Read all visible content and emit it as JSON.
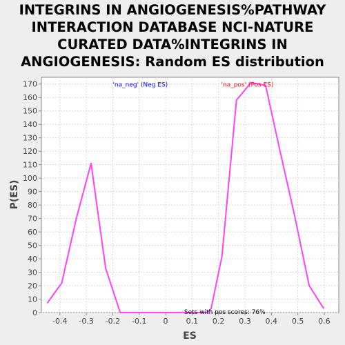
{
  "chart_data": {
    "type": "line",
    "title": "INTEGRINS IN ANGIOGENESIS%PATHWAY INTERACTION DATABASE NCI-NATURE CURATED DATA%INTEGRINS IN ANGIOGENESIS: Random ES distribution",
    "xlabel": "ES",
    "ylabel": "P(ES)",
    "xlim": [
      -0.47,
      0.655
    ],
    "ylim": [
      0,
      175
    ],
    "x_ticks": [
      -0.4,
      -0.3,
      -0.2,
      -0.1,
      0.0,
      0.1,
      0.2,
      0.3,
      0.4,
      0.5,
      0.6
    ],
    "y_ticks": [
      0,
      10,
      20,
      30,
      40,
      50,
      60,
      70,
      80,
      90,
      100,
      110,
      120,
      130,
      140,
      150,
      160,
      170
    ],
    "grid": true,
    "series": [
      {
        "color": "#ff40ff",
        "points": [
          [
            -0.448,
            7
          ],
          [
            -0.393,
            22
          ],
          [
            -0.338,
            70
          ],
          [
            -0.282,
            111
          ],
          [
            -0.227,
            33
          ],
          [
            -0.172,
            0
          ],
          [
            0.048,
            0
          ],
          [
            0.103,
            0
          ],
          [
            0.158,
            0
          ],
          [
            0.172,
            3
          ],
          [
            0.213,
            42
          ],
          [
            0.268,
            158
          ],
          [
            0.323,
            171
          ],
          [
            0.378,
            169
          ],
          [
            0.433,
            120
          ],
          [
            0.488,
            72
          ],
          [
            0.543,
            20
          ],
          [
            0.598,
            3
          ]
        ]
      }
    ],
    "annotations": [
      {
        "text": "'na_neg' (Neg ES)",
        "x": -0.2,
        "y": 170,
        "color": "#0000ff"
      },
      {
        "text": "'na_pos' (Pos ES)",
        "x": 0.21,
        "y": 170,
        "color": "#ff0000"
      },
      {
        "text": "Sets with pos scores: 76%",
        "x": 0.07,
        "y": 1,
        "color": "#000000"
      }
    ]
  }
}
